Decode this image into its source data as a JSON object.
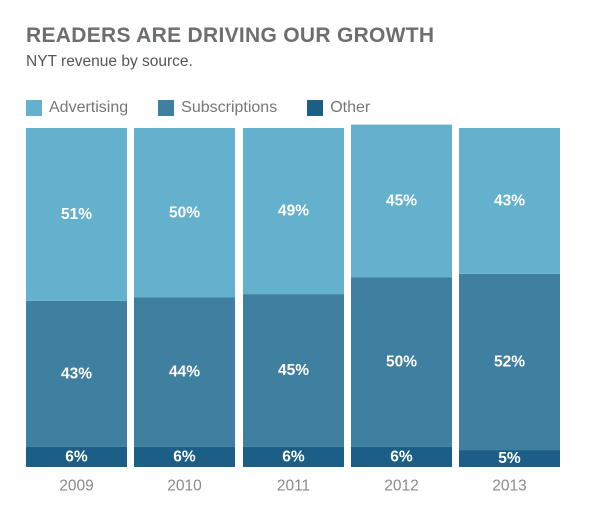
{
  "chart_data": {
    "type": "bar",
    "stacked": true,
    "normalized": true,
    "title": "READERS ARE DRIVING OUR GROWTH",
    "subtitle": "NYT revenue by source.",
    "legend_position": "top-left",
    "grid": false,
    "ylim": [
      0,
      100
    ],
    "categories": [
      "2009",
      "2010",
      "2011",
      "2012",
      "2013"
    ],
    "series": [
      {
        "name": "Other",
        "values": [
          6,
          6,
          6,
          6,
          5
        ],
        "labels": [
          "6%",
          "6%",
          "6%",
          "6%",
          "5%"
        ],
        "color": "#1c5f86"
      },
      {
        "name": "Subscriptions",
        "values": [
          43,
          44,
          45,
          50,
          52
        ],
        "labels": [
          "43%",
          "44%",
          "45%",
          "50%",
          "52%"
        ],
        "color": "#3f7fa0"
      },
      {
        "name": "Advertising",
        "values": [
          51,
          50,
          49,
          45,
          43
        ],
        "labels": [
          "51%",
          "50%",
          "49%",
          "45%",
          "43%"
        ],
        "color": "#64b1cd"
      }
    ],
    "legend": [
      {
        "name": "Advertising",
        "color": "#64b1cd"
      },
      {
        "name": "Subscriptions",
        "color": "#3f7fa0"
      },
      {
        "name": "Other",
        "color": "#1c5f86"
      }
    ]
  }
}
